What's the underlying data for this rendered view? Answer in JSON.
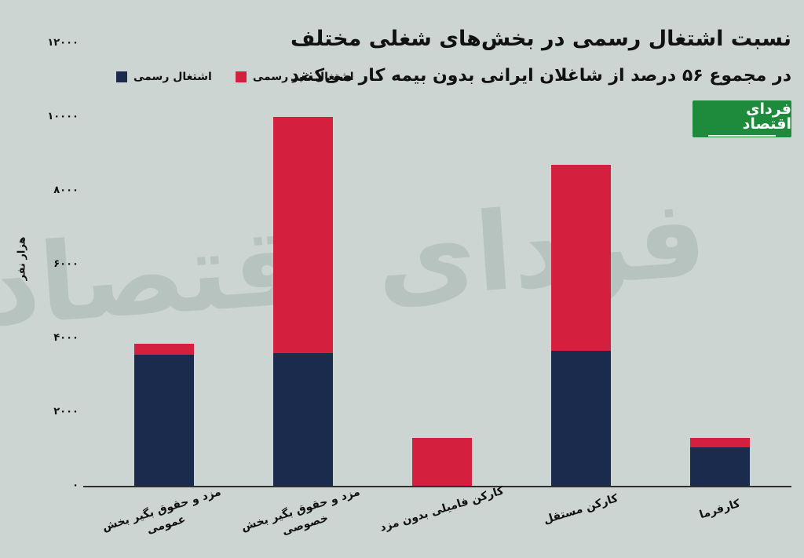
{
  "page": {
    "background": "#cdd5d2"
  },
  "header": {
    "title": "نسبت اشتغال رسمی در بخش‌های شغلی مختلف",
    "subtitle": "در مجموع ۵۶ درصد از شاغلان ایرانی بدون بیمه کار می‌کنند"
  },
  "logo": {
    "text": "فردای اقتصاد",
    "background": "#1e8a3c"
  },
  "watermark": {
    "text": "فردای اقتصاد"
  },
  "legend": [
    {
      "label": "اشتغال رسمی",
      "color": "#1b2b4d"
    },
    {
      "label": "اشتغال غیر رسمی",
      "color": "#d41f3e"
    }
  ],
  "chart_data": {
    "type": "bar",
    "stacked": true,
    "title": "نسبت اشتغال رسمی در بخش‌های شغلی مختلف",
    "subtitle": "در مجموع ۵۶ درصد از شاغلان ایرانی بدون بیمه کار می‌کنند",
    "ylabel": "هزار نفر",
    "ylim": [
      0,
      12000
    ],
    "grid": false,
    "legend_position": "top-left",
    "yticks": [
      0,
      2000,
      4000,
      6000,
      8000,
      10000,
      12000
    ],
    "ytick_labels": [
      "۰",
      "۲۰۰۰",
      "۴۰۰۰",
      "۶۰۰۰",
      "۸۰۰۰",
      "۱۰۰۰۰",
      "۱۲۰۰۰"
    ],
    "categories": [
      "مزد و حقوق بگیر بخش عمومی",
      "مزد و حقوق بگیر بخش خصوصی",
      "کارکن فامیلی بدون مزد",
      "کارکن مستقل",
      "کارفرما"
    ],
    "category_lines": [
      [
        "مزد و حقوق بگیر بخش",
        "عمومی"
      ],
      [
        "مزد و حقوق بگیر بخش",
        "خصوصی"
      ],
      [
        "کارکن فامیلی بدون مزد"
      ],
      [
        "کارکن مستقل"
      ],
      [
        "کارفرما"
      ]
    ],
    "series": [
      {
        "name": "اشتغال رسمی",
        "color": "#1b2b4d",
        "values": [
          3550,
          3600,
          0,
          3650,
          1050
        ]
      },
      {
        "name": "اشتغال غیر رسمی",
        "color": "#d41f3e",
        "values": [
          300,
          6400,
          1300,
          5050,
          250
        ]
      }
    ]
  }
}
